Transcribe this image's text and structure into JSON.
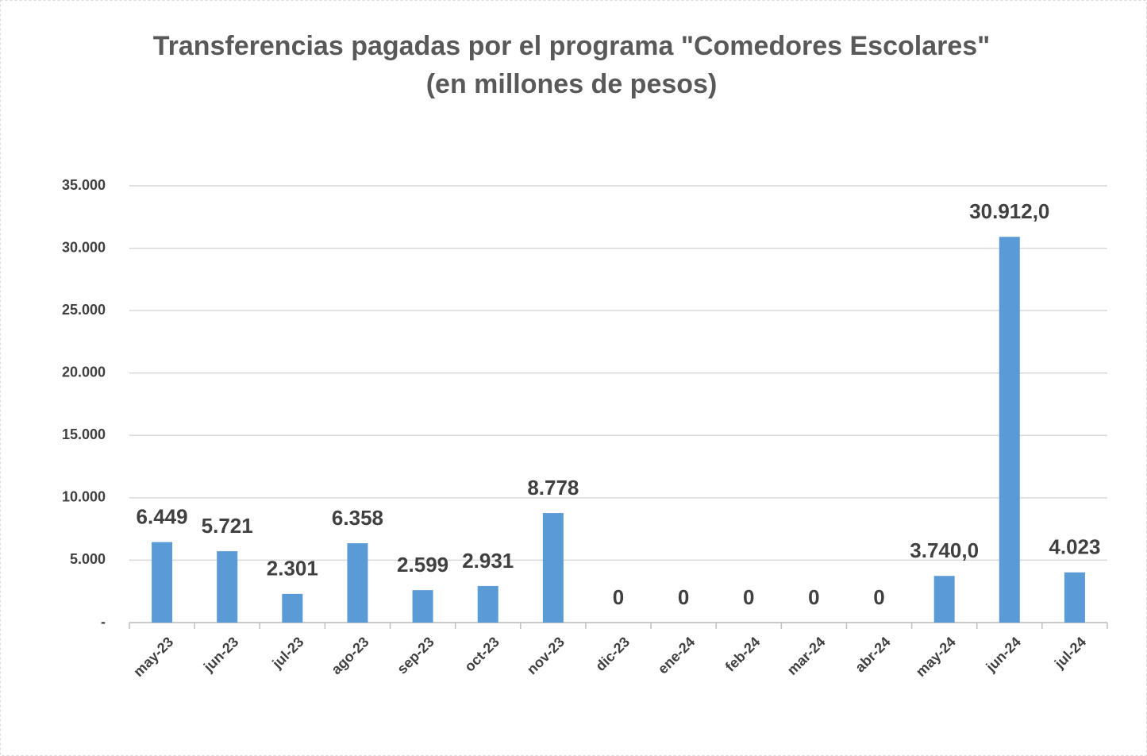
{
  "chart_data": {
    "type": "bar",
    "title": "Transferencias pagadas por el programa \"Comedores Escolares\"",
    "subtitle": "(en millones de pesos)",
    "categories": [
      "may-23",
      "jun-23",
      "jul-23",
      "ago-23",
      "sep-23",
      "oct-23",
      "nov-23",
      "dic-23",
      "ene-24",
      "feb-24",
      "mar-24",
      "abr-24",
      "may-24",
      "jun-24",
      "jul-24"
    ],
    "values": [
      6449,
      5721,
      2301,
      6358,
      2599,
      2931,
      8778,
      0,
      0,
      0,
      0,
      0,
      3740,
      30912,
      4023
    ],
    "value_labels": [
      "6.449",
      "5.721",
      "2.301",
      "6.358",
      "2.599",
      "2.931",
      "8.778",
      "0",
      "0",
      "0",
      "0",
      "0",
      "3.740,0",
      "30.912,0",
      "4.023"
    ],
    "color": "#5b9bd5",
    "ylim": [
      0,
      35000
    ],
    "yticks": [
      {
        "value": 0,
        "label": "-"
      },
      {
        "value": 5000,
        "label": "5.000"
      },
      {
        "value": 10000,
        "label": "10.000"
      },
      {
        "value": 15000,
        "label": "15.000"
      },
      {
        "value": 20000,
        "label": "20.000"
      },
      {
        "value": 25000,
        "label": "25.000"
      },
      {
        "value": 30000,
        "label": "30.000"
      },
      {
        "value": 35000,
        "label": "35.000"
      }
    ],
    "grid": true
  }
}
